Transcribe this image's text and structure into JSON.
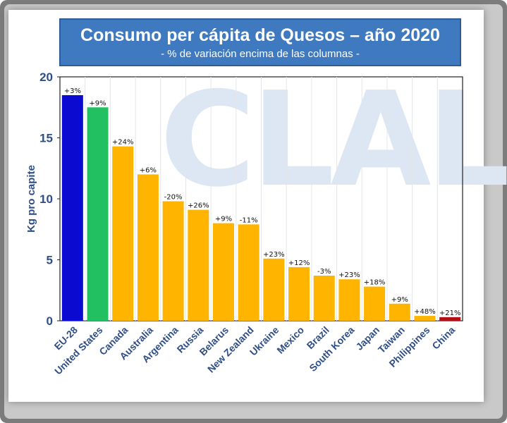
{
  "chart_data": {
    "type": "bar",
    "title": "Consumo per cápita de Quesos – año 2020",
    "subtitle": "- % de variación encima de las columnas -",
    "watermark": "CLAL",
    "xlabel": "",
    "ylabel": "Kg pro capite",
    "ylim": [
      0,
      20
    ],
    "yticks": [
      "0",
      "5",
      "10",
      "15",
      "20"
    ],
    "categories": [
      "EU-28",
      "United States",
      "Canada",
      "Australia",
      "Argentina",
      "Russia",
      "Belarus",
      "New Zealand",
      "Ukraine",
      "Mexico",
      "Brazil",
      "South Korea",
      "Japan",
      "Taiwan",
      "Philippines",
      "China"
    ],
    "values": [
      18.5,
      17.5,
      14.3,
      12.0,
      9.8,
      9.1,
      8.0,
      7.9,
      5.1,
      4.4,
      3.7,
      3.4,
      2.8,
      1.4,
      0.4,
      0.3
    ],
    "labels": [
      "+3%",
      "+9%",
      "+24%",
      "+6%",
      "-20%",
      "+26%",
      "+9%",
      "-11%",
      "+23%",
      "+12%",
      "-3%",
      "+23%",
      "+18%",
      "+9%",
      "+48%",
      "+21%"
    ],
    "colors": [
      "#0a0ad0",
      "#22c060",
      "#ffb400",
      "#ffb400",
      "#ffb400",
      "#ffb400",
      "#ffb400",
      "#ffb400",
      "#ffb400",
      "#ffb400",
      "#ffb400",
      "#ffb400",
      "#ffb400",
      "#ffb400",
      "#ffb400",
      "#b01018"
    ]
  }
}
